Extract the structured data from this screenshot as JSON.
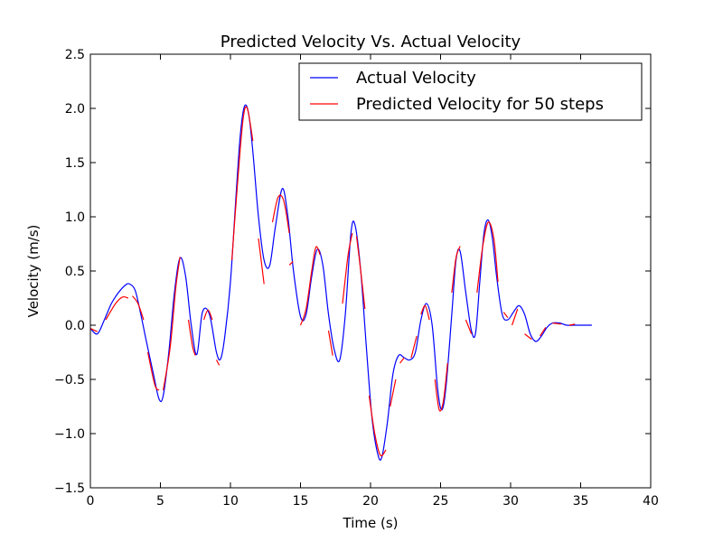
{
  "chart_data": {
    "type": "line",
    "title": "Predicted Velocity Vs. Actual Velocity",
    "xlabel": "Time (s)",
    "ylabel": "Velocity (m/s)",
    "xlim": [
      0,
      40
    ],
    "ylim": [
      -1.5,
      2.5
    ],
    "xticks": [
      0,
      5,
      10,
      15,
      20,
      25,
      30,
      35,
      40
    ],
    "xtick_labels": [
      "0",
      "5",
      "10",
      "15",
      "20",
      "25",
      "30",
      "35",
      "40"
    ],
    "yticks": [
      -1.5,
      -1.0,
      -0.5,
      0.0,
      0.5,
      1.0,
      1.5,
      2.0,
      2.5
    ],
    "ytick_labels": [
      "−1.5",
      "−1.0",
      "−0.5",
      "0.0",
      "0.5",
      "1.0",
      "1.5",
      "2.0",
      "2.5"
    ],
    "grid": false,
    "legend_position": "top-right",
    "colors": {
      "actual": "#0000ff",
      "predicted": "#ff0000"
    },
    "series": [
      {
        "name": "Actual Velocity",
        "style": "solid",
        "x": [
          0,
          0.5,
          1,
          1.5,
          2,
          2.5,
          2.8,
          3.2,
          3.6,
          4,
          4.5,
          4.9,
          5.2,
          5.6,
          6,
          6.4,
          6.8,
          7.2,
          7.6,
          8,
          8.5,
          9,
          9.3,
          9.6,
          10,
          10.4,
          10.7,
          11,
          11.3,
          11.6,
          12,
          12.4,
          12.8,
          13.2,
          13.7,
          14.1,
          14.5,
          15,
          15.4,
          15.8,
          16.2,
          16.6,
          17,
          17.4,
          17.8,
          18.2,
          18.6,
          18.9,
          19.3,
          19.7,
          20.1,
          20.5,
          20.8,
          21.2,
          21.6,
          22,
          22.4,
          22.8,
          23.2,
          23.6,
          24,
          24.4,
          24.8,
          25.1,
          25.4,
          25.8,
          26.1,
          26.4,
          26.8,
          27.2,
          27.5,
          27.8,
          28.1,
          28.4,
          28.7,
          29,
          29.4,
          29.8,
          30.2,
          30.6,
          31,
          31.4,
          31.8,
          32.2,
          32.6,
          33,
          33.5,
          34,
          34.5,
          35,
          35.8
        ],
        "y": [
          -0.03,
          -0.08,
          0.05,
          0.2,
          0.3,
          0.37,
          0.38,
          0.32,
          0.1,
          -0.15,
          -0.45,
          -0.68,
          -0.65,
          -0.25,
          0.3,
          0.62,
          0.45,
          0.0,
          -0.27,
          0.12,
          0.1,
          -0.25,
          -0.31,
          -0.1,
          0.4,
          1.2,
          1.75,
          2.02,
          1.95,
          1.6,
          1.0,
          0.6,
          0.55,
          0.9,
          1.26,
          1.0,
          0.5,
          0.08,
          0.1,
          0.45,
          0.7,
          0.55,
          0.1,
          -0.22,
          -0.32,
          0.1,
          0.85,
          0.92,
          0.5,
          -0.2,
          -0.85,
          -1.18,
          -1.22,
          -0.9,
          -0.45,
          -0.28,
          -0.3,
          -0.32,
          -0.25,
          0.05,
          0.2,
          0.0,
          -0.6,
          -0.78,
          -0.55,
          0.1,
          0.6,
          0.68,
          0.3,
          -0.05,
          -0.07,
          0.4,
          0.85,
          0.97,
          0.8,
          0.45,
          0.1,
          0.05,
          0.12,
          0.18,
          0.1,
          -0.08,
          -0.15,
          -0.1,
          -0.02,
          0.02,
          0.02,
          0.0,
          0.0,
          0.0,
          0.0
        ]
      },
      {
        "name": "Predicted Velocity for 50 steps",
        "style": "dashed",
        "segments": [
          {
            "x": [
              0,
              0.5
            ],
            "y": [
              -0.03,
              -0.06
            ]
          },
          {
            "x": [
              1.1,
              1.8,
              2.3,
              2.7
            ],
            "y": [
              0.05,
              0.2,
              0.26,
              0.25
            ]
          },
          {
            "x": [
              3.0,
              3.4,
              3.8
            ],
            "y": [
              0.27,
              0.2,
              0.05
            ]
          },
          {
            "x": [
              4.1,
              4.6,
              4.9
            ],
            "y": [
              -0.25,
              -0.55,
              -0.6
            ]
          },
          {
            "x": [
              5.2,
              5.7,
              6.1,
              6.4
            ],
            "y": [
              -0.6,
              -0.2,
              0.35,
              0.63
            ]
          },
          {
            "x": [
              7.0,
              7.3,
              7.5
            ],
            "y": [
              0.05,
              -0.2,
              -0.28
            ]
          },
          {
            "x": [
              8.1,
              8.4,
              8.7
            ],
            "y": [
              0.05,
              0.14,
              0.05
            ]
          },
          {
            "x": [
              9.0,
              9.2
            ],
            "y": [
              -0.32,
              -0.37
            ]
          },
          {
            "x": [
              10.1,
              10.5,
              10.9,
              11.2,
              11.6
            ],
            "y": [
              0.6,
              1.3,
              1.9,
              2.0,
              1.7
            ]
          },
          {
            "x": [
              12.0,
              12.4
            ],
            "y": [
              0.8,
              0.38
            ]
          },
          {
            "x": [
              13.0,
              13.4,
              13.8,
              14.2
            ],
            "y": [
              0.95,
              1.18,
              1.15,
              0.85
            ]
          },
          {
            "x": [
              14.4
            ],
            "y": [
              0.58
            ]
          },
          {
            "x": [
              15.0,
              15.4,
              15.8,
              16.1,
              16.4
            ],
            "y": [
              0.0,
              0.15,
              0.5,
              0.72,
              0.65
            ]
          },
          {
            "x": [
              17.0,
              17.3
            ],
            "y": [
              -0.05,
              -0.28
            ]
          },
          {
            "x": [
              18.0,
              18.4,
              18.7
            ],
            "y": [
              0.2,
              0.65,
              0.85
            ]
          },
          {
            "x": [
              19.0,
              19.3,
              19.6
            ],
            "y": [
              0.82,
              0.5,
              0.15
            ]
          },
          {
            "x": [
              19.9,
              20.3,
              20.7,
              21.1
            ],
            "y": [
              -0.65,
              -1.0,
              -1.2,
              -1.15
            ]
          },
          {
            "x": [
              21.4,
              21.8
            ],
            "y": [
              -0.75,
              -0.5
            ]
          },
          {
            "x": [
              22.1,
              22.4
            ],
            "y": [
              -0.35,
              -0.3
            ]
          },
          {
            "x": [
              22.9,
              23.3
            ],
            "y": [
              -0.3,
              -0.1
            ]
          },
          {
            "x": [
              23.6,
              23.9,
              24.2
            ],
            "y": [
              0.1,
              0.18,
              0.05
            ]
          },
          {
            "x": [
              24.6,
              24.9,
              25.2,
              25.5
            ],
            "y": [
              -0.5,
              -0.78,
              -0.7,
              -0.35
            ]
          },
          {
            "x": [
              25.8,
              26.1,
              26.4
            ],
            "y": [
              0.3,
              0.62,
              0.73
            ]
          },
          {
            "x": [
              26.8,
              27.2
            ],
            "y": [
              0.05,
              -0.08
            ]
          },
          {
            "x": [
              27.6,
              28.0,
              28.4,
              28.8,
              29.1
            ],
            "y": [
              0.3,
              0.72,
              0.95,
              0.8,
              0.4
            ]
          },
          {
            "x": [
              29.5,
              29.8
            ],
            "y": [
              0.12,
              0.07
            ]
          },
          {
            "x": [
              30.1,
              30.5
            ],
            "y": [
              0.0,
              0.15
            ]
          },
          {
            "x": [
              31.0,
              31.5
            ],
            "y": [
              -0.08,
              -0.13
            ]
          },
          {
            "x": [
              32.1,
              32.5
            ],
            "y": [
              -0.1,
              -0.02
            ]
          },
          {
            "x": [
              33.0,
              33.6
            ],
            "y": [
              0.02,
              0.01
            ]
          },
          {
            "x": [
              34.2,
              34.6
            ],
            "y": [
              0.0,
              0.01
            ]
          }
        ]
      }
    ]
  }
}
